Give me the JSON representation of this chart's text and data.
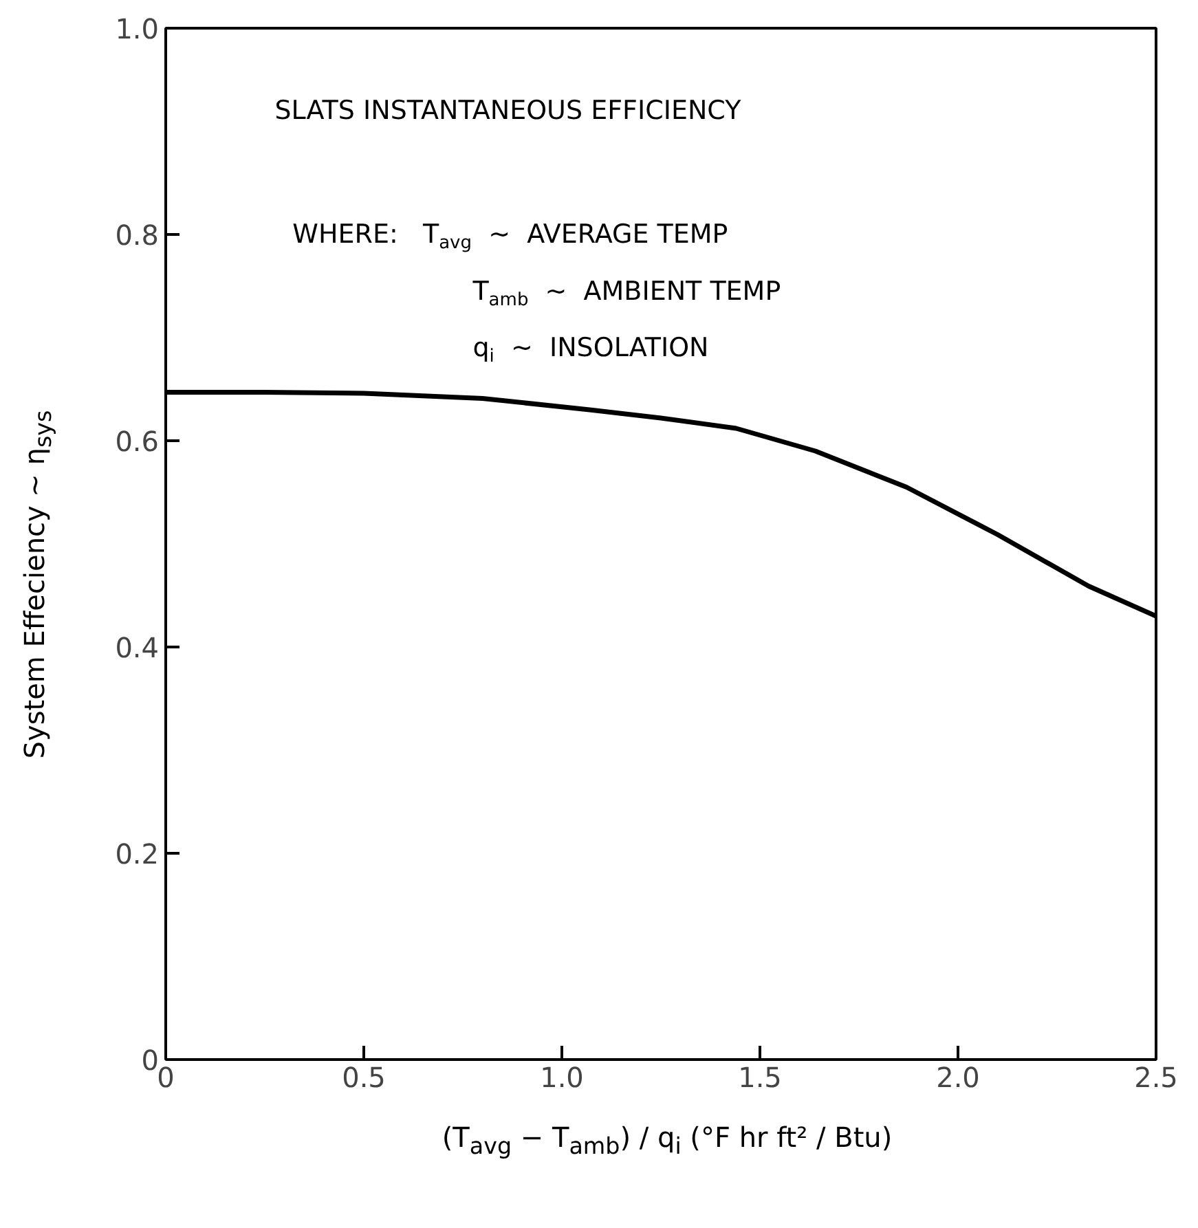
{
  "chart_data": {
    "type": "line",
    "xlabel": "(T$_{avg}$ − T$_{amb}$) / q$_{i}$  (°F hr ft² / Btu)",
    "ylabel": "System Effeciency ~ η$_{sys}$",
    "annotations": [
      "SLATS INSTANTANEOUS EFFICIENCY",
      "WHERE:   T$_{avg}$  ~  AVERAGE TEMP",
      "T$_{amb}$  ~  AMBIENT TEMP",
      "q$_{i}$  ~  INSOLATION"
    ],
    "x": [
      0,
      0.25,
      0.5,
      0.8,
      1.07,
      1.25,
      1.44,
      1.64,
      1.87,
      2.1,
      2.33,
      2.5
    ],
    "series": [
      {
        "color": "#000000",
        "values": [
          0.647,
          0.647,
          0.646,
          0.641,
          0.63,
          0.622,
          0.612,
          0.59,
          0.555,
          0.509,
          0.459,
          0.43
        ]
      }
    ],
    "xlim": [
      0,
      2.5
    ],
    "ylim": [
      0,
      1.0
    ],
    "xticks": [
      {
        "value": 0,
        "label": "0"
      },
      0.5,
      {
        "value": 1,
        "label": "1.0"
      },
      1.5,
      {
        "value": 2,
        "label": "2.0"
      },
      2.5
    ],
    "yticks": [
      {
        "value": 0,
        "label": "0"
      },
      0.2,
      0.4,
      0.6,
      0.8,
      {
        "value": 1,
        "label": "1.0"
      }
    ],
    "grid": false,
    "marker": "none",
    "line_style": "solid"
  }
}
